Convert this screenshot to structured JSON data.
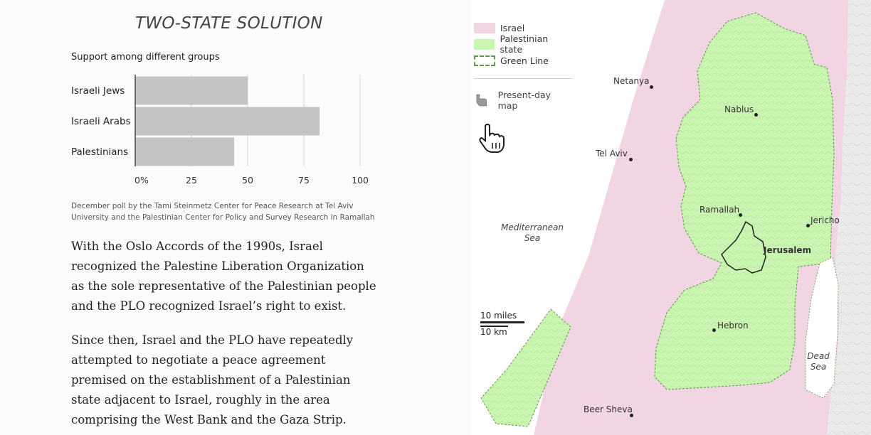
{
  "header": {
    "title": "TWO-STATE SOLUTION",
    "subtitle": "Support among different groups"
  },
  "chart_data": {
    "type": "bar",
    "orientation": "horizontal",
    "categories": [
      "Israeli Jews",
      "Israeli Arabs",
      "Palestinians"
    ],
    "values": [
      50,
      82,
      44
    ],
    "xticks": [
      "0%",
      "25",
      "50",
      "75",
      "100"
    ],
    "xlim": [
      0,
      100
    ],
    "grid": true,
    "bar_color": "#c4c4c4"
  },
  "source": "December poll by the Tami Steinmetz Center for Peace Research at Tel Aviv University and the Palestinian Center for Policy and Survey Research in Ramallah",
  "paragraphs": [
    "With the Oslo Accords of the 1990s, Israel recognized the Palestine Liberation Organization as the sole representative of the Palestinian people and the PLO recognized Israel’s right to exist.",
    "Since then, Israel and the PLO have repeatedly attempted to negotiate a peace agreement premised on the establishment of a Palestinian state adjacent to Israel, roughly in the area comprising the West Bank and the Gaza Strip."
  ],
  "legend": {
    "items": [
      {
        "label": "Israel",
        "color": "#f1d5e2"
      },
      {
        "label": "Palestinian state",
        "color": "#c9f7b1"
      },
      {
        "label": "Green Line",
        "color": "#57a041"
      }
    ],
    "present_day_label": "Present-day map",
    "icons": {
      "present_day": "pointing-hand-icon",
      "cursor": "hand-cursor-icon"
    }
  },
  "map": {
    "cities": [
      "Netanya",
      "Nablus",
      "Tel Aviv",
      "Ramallah",
      "Jericho",
      "Jerusalem",
      "Hebron",
      "Beer Sheva"
    ],
    "sea": {
      "mediterranean": "Mediterranean Sea",
      "dead": "Dead Sea"
    },
    "scale": {
      "miles": "10 miles",
      "km": "10 km"
    },
    "colors": {
      "israel": "#f1d5e2",
      "palestine": "#c9f7b1",
      "green_line": "#57a041",
      "terrain": "#ececec"
    }
  }
}
